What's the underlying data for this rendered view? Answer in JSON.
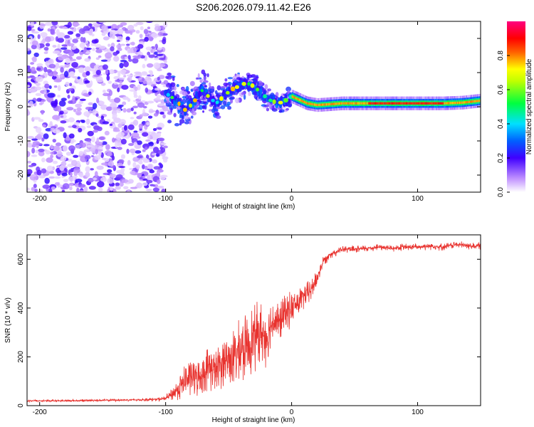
{
  "figure_title": "S206.2026.079.11.42.E26",
  "colors": {
    "snr_line": "#e8322e",
    "axis": "#000000",
    "background": "#ffffff"
  },
  "chart_data": [
    {
      "type": "heatmap",
      "title": "S206.2026.079.11.42.E26",
      "xlabel": "Height of straight line (km)",
      "ylabel": "Frequency (Hz)",
      "xlim": [
        -210,
        150
      ],
      "ylim": [
        -25,
        25
      ],
      "xticks": [
        -200,
        -100,
        0,
        100
      ],
      "yticks": [
        -20,
        -10,
        0,
        10,
        20
      ],
      "colorbar": {
        "label": "Normalized spectral amplitude",
        "range": [
          0,
          1
        ],
        "ticks": [
          0.0,
          0.2,
          0.4,
          0.6,
          0.8
        ],
        "colormap": [
          "#ffffff",
          "#b060ff",
          "#0000ff",
          "#00ffff",
          "#00ff00",
          "#ffff00",
          "#ff8000",
          "#ff0000",
          "#ff00a0"
        ]
      },
      "regions": [
        {
          "name": "noise",
          "x_range": [
            -210,
            -100
          ],
          "freq_range": [
            -25,
            25
          ],
          "amplitude": 0.15
        },
        {
          "name": "transition",
          "x_range": [
            -100,
            0
          ],
          "amplitude": 0.35
        },
        {
          "name": "signal-band",
          "x_range": [
            0,
            150
          ],
          "freq_center": 1,
          "freq_halfwidth": 1.2,
          "amplitude": 0.9
        }
      ],
      "ridge": [
        {
          "x": -100,
          "freq": 4
        },
        {
          "x": -92,
          "freq": 2
        },
        {
          "x": -85,
          "freq": -1
        },
        {
          "x": -78,
          "freq": 1
        },
        {
          "x": -72,
          "freq": 5
        },
        {
          "x": -66,
          "freq": 3
        },
        {
          "x": -60,
          "freq": 1
        },
        {
          "x": -54,
          "freq": 3
        },
        {
          "x": -48,
          "freq": 5
        },
        {
          "x": -42,
          "freq": 6
        },
        {
          "x": -36,
          "freq": 7
        },
        {
          "x": -30,
          "freq": 6
        },
        {
          "x": -24,
          "freq": 4
        },
        {
          "x": -18,
          "freq": 2
        },
        {
          "x": -10,
          "freq": 1
        },
        {
          "x": -4,
          "freq": 2
        },
        {
          "x": 0,
          "freq": 3
        },
        {
          "x": 6,
          "freq": 2
        },
        {
          "x": 12,
          "freq": 1
        },
        {
          "x": 20,
          "freq": 0.5
        },
        {
          "x": 40,
          "freq": 1
        },
        {
          "x": 60,
          "freq": 1
        },
        {
          "x": 80,
          "freq": 1
        },
        {
          "x": 100,
          "freq": 1
        },
        {
          "x": 120,
          "freq": 1
        },
        {
          "x": 135,
          "freq": 1.2
        },
        {
          "x": 150,
          "freq": 1.8
        }
      ]
    },
    {
      "type": "line",
      "xlabel": "Height of straight line (km)",
      "ylabel": "SNR (10 * v/v)",
      "xlim": [
        -210,
        150
      ],
      "ylim": [
        0,
        700
      ],
      "xticks": [
        -200,
        -100,
        0,
        100
      ],
      "yticks": [
        0,
        200,
        400,
        600
      ],
      "series": [
        {
          "name": "SNR",
          "color": "#e8322e",
          "x": [
            -210,
            -180,
            -150,
            -120,
            -105,
            -100,
            -95,
            -90,
            -85,
            -80,
            -75,
            -70,
            -65,
            -60,
            -55,
            -50,
            -45,
            -40,
            -35,
            -30,
            -25,
            -20,
            -15,
            -10,
            -5,
            0,
            5,
            10,
            15,
            20,
            25,
            30,
            40,
            50,
            60,
            70,
            80,
            90,
            100,
            110,
            120,
            130,
            140,
            150
          ],
          "y": [
            20,
            20,
            22,
            24,
            26,
            30,
            45,
            70,
            100,
            120,
            110,
            130,
            160,
            140,
            180,
            190,
            200,
            220,
            250,
            280,
            300,
            280,
            350,
            340,
            380,
            400,
            420,
            450,
            470,
            520,
            590,
            620,
            640,
            640,
            645,
            650,
            645,
            650,
            650,
            655,
            650,
            660,
            655,
            655
          ],
          "noise_amplitude": [
            6,
            6,
            6,
            7,
            10,
            14,
            30,
            55,
            80,
            90,
            80,
            90,
            110,
            100,
            120,
            130,
            140,
            150,
            150,
            160,
            150,
            130,
            110,
            100,
            90,
            80,
            70,
            60,
            55,
            45,
            30,
            22,
            18,
            18,
            18,
            18,
            18,
            18,
            18,
            18,
            18,
            18,
            18,
            18
          ]
        }
      ]
    }
  ]
}
